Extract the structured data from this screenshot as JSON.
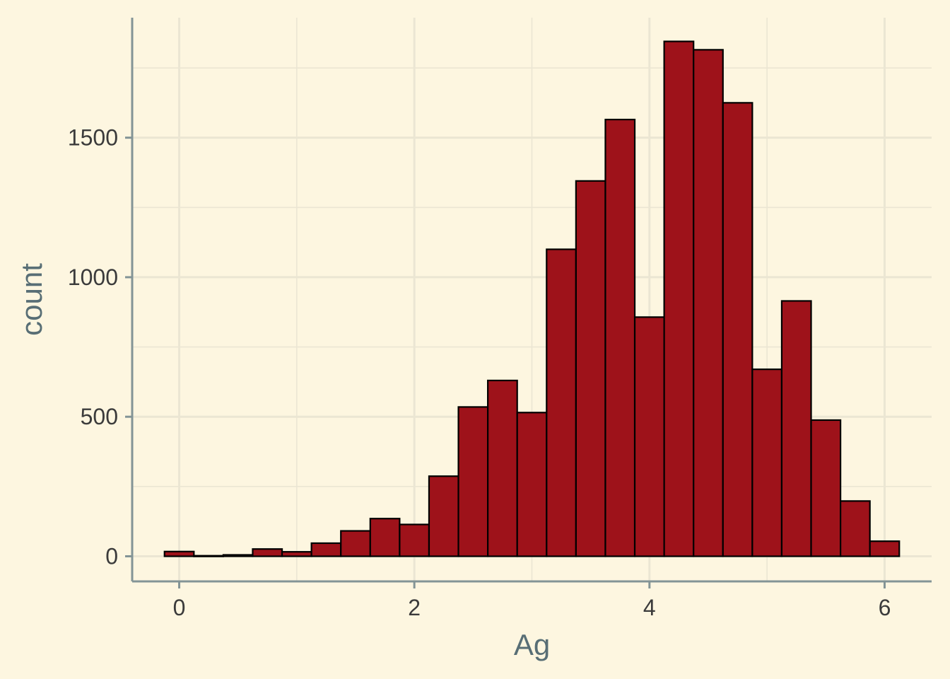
{
  "chart_data": {
    "type": "bar",
    "subtype": "histogram",
    "xlabel": "Ag",
    "ylabel": "count",
    "xlim": [
      -0.4,
      6.4
    ],
    "ylim": [
      -90,
      1930
    ],
    "x_ticks": [
      0,
      2,
      4,
      6
    ],
    "x_tick_labels": [
      "0",
      "2",
      "4",
      "6"
    ],
    "y_ticks": [
      0,
      500,
      1000,
      1500
    ],
    "y_tick_labels": [
      "0",
      "500",
      "1000",
      "1500"
    ],
    "x_minor_ticks": [
      1,
      3,
      5
    ],
    "y_minor_ticks": [
      250,
      750,
      1250,
      1750
    ],
    "grid": true,
    "bin_width": 0.25,
    "bins": [
      {
        "x0": -0.125,
        "x1": 0.125,
        "count": 17
      },
      {
        "x0": 0.125,
        "x1": 0.375,
        "count": 2
      },
      {
        "x0": 0.375,
        "x1": 0.625,
        "count": 5
      },
      {
        "x0": 0.625,
        "x1": 0.875,
        "count": 26
      },
      {
        "x0": 0.875,
        "x1": 1.125,
        "count": 16
      },
      {
        "x0": 1.125,
        "x1": 1.375,
        "count": 47
      },
      {
        "x0": 1.375,
        "x1": 1.625,
        "count": 91
      },
      {
        "x0": 1.625,
        "x1": 1.875,
        "count": 135
      },
      {
        "x0": 1.875,
        "x1": 2.125,
        "count": 114
      },
      {
        "x0": 2.125,
        "x1": 2.375,
        "count": 287
      },
      {
        "x0": 2.375,
        "x1": 2.625,
        "count": 535
      },
      {
        "x0": 2.625,
        "x1": 2.875,
        "count": 630
      },
      {
        "x0": 2.875,
        "x1": 3.125,
        "count": 515
      },
      {
        "x0": 3.125,
        "x1": 3.375,
        "count": 1100
      },
      {
        "x0": 3.375,
        "x1": 3.625,
        "count": 1345
      },
      {
        "x0": 3.625,
        "x1": 3.875,
        "count": 1565
      },
      {
        "x0": 3.875,
        "x1": 4.125,
        "count": 857
      },
      {
        "x0": 4.125,
        "x1": 4.375,
        "count": 1845
      },
      {
        "x0": 4.375,
        "x1": 4.625,
        "count": 1815
      },
      {
        "x0": 4.625,
        "x1": 4.875,
        "count": 1625
      },
      {
        "x0": 4.875,
        "x1": 5.125,
        "count": 670
      },
      {
        "x0": 5.125,
        "x1": 5.375,
        "count": 915
      },
      {
        "x0": 5.375,
        "x1": 5.625,
        "count": 488
      },
      {
        "x0": 5.625,
        "x1": 5.875,
        "count": 198
      },
      {
        "x0": 5.875,
        "x1": 6.125,
        "count": 54
      }
    ],
    "colors": {
      "background": "#fdf6e0",
      "grid": "#ebe6d3",
      "axis_line": "#839496",
      "bar_fill": "#9e121a",
      "bar_stroke": "#000000",
      "tick_text": "#3b3b3b",
      "title_text": "#586e75"
    }
  }
}
